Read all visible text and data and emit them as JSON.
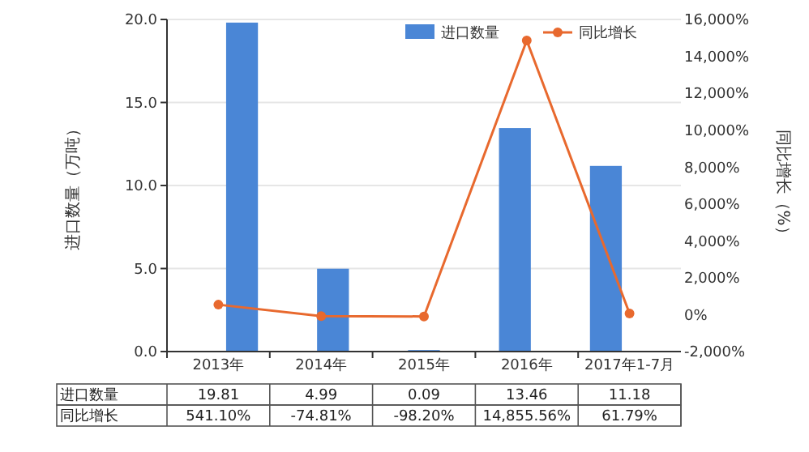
{
  "chart_data": {
    "type": "bar",
    "categories": [
      "2013年",
      "2014年",
      "2015年",
      "2016年",
      "2017年1-7月"
    ],
    "series": [
      {
        "name": "进口数量",
        "color": "#4a86d6",
        "values": [
          19.81,
          4.99,
          0.09,
          13.46,
          11.18
        ],
        "value_labels": [
          "19.81",
          "4.99",
          "0.09",
          "13.46",
          "11.18"
        ]
      },
      {
        "name": "同比增长",
        "type": "line",
        "axis": "y2",
        "color": "#e8692e",
        "marker": "circle",
        "values": [
          541.1,
          -74.81,
          -98.2,
          14855.56,
          61.79
        ],
        "value_labels": [
          "541.10%",
          "-74.81%",
          "-98.20%",
          "14,855.56%",
          "61.79%"
        ]
      }
    ],
    "ylabel": "进口数量（万吨）",
    "y2label": "同比增长（%）",
    "ylim": [
      0,
      20
    ],
    "yticks": [
      {
        "value": 0,
        "label": "0.0"
      },
      {
        "value": 5,
        "label": "5.0"
      },
      {
        "value": 10,
        "label": "10.0"
      },
      {
        "value": 15,
        "label": "15.0"
      },
      {
        "value": 20,
        "label": "20.0"
      }
    ],
    "y2lim": [
      -2000,
      16000
    ],
    "y2ticks": [
      {
        "value": -2000,
        "label": "-2,000%"
      },
      {
        "value": 0,
        "label": "0%"
      },
      {
        "value": 2000,
        "label": "2,000%"
      },
      {
        "value": 4000,
        "label": "4,000%"
      },
      {
        "value": 6000,
        "label": "6,000%"
      },
      {
        "value": 8000,
        "label": "8,000%"
      },
      {
        "value": 10000,
        "label": "10,000%"
      },
      {
        "value": 12000,
        "label": "12,000%"
      },
      {
        "value": 14000,
        "label": "14,000%"
      },
      {
        "value": 16000,
        "label": "16,000%"
      }
    ],
    "grid": "y",
    "legend": "top right",
    "data_labels": true
  }
}
